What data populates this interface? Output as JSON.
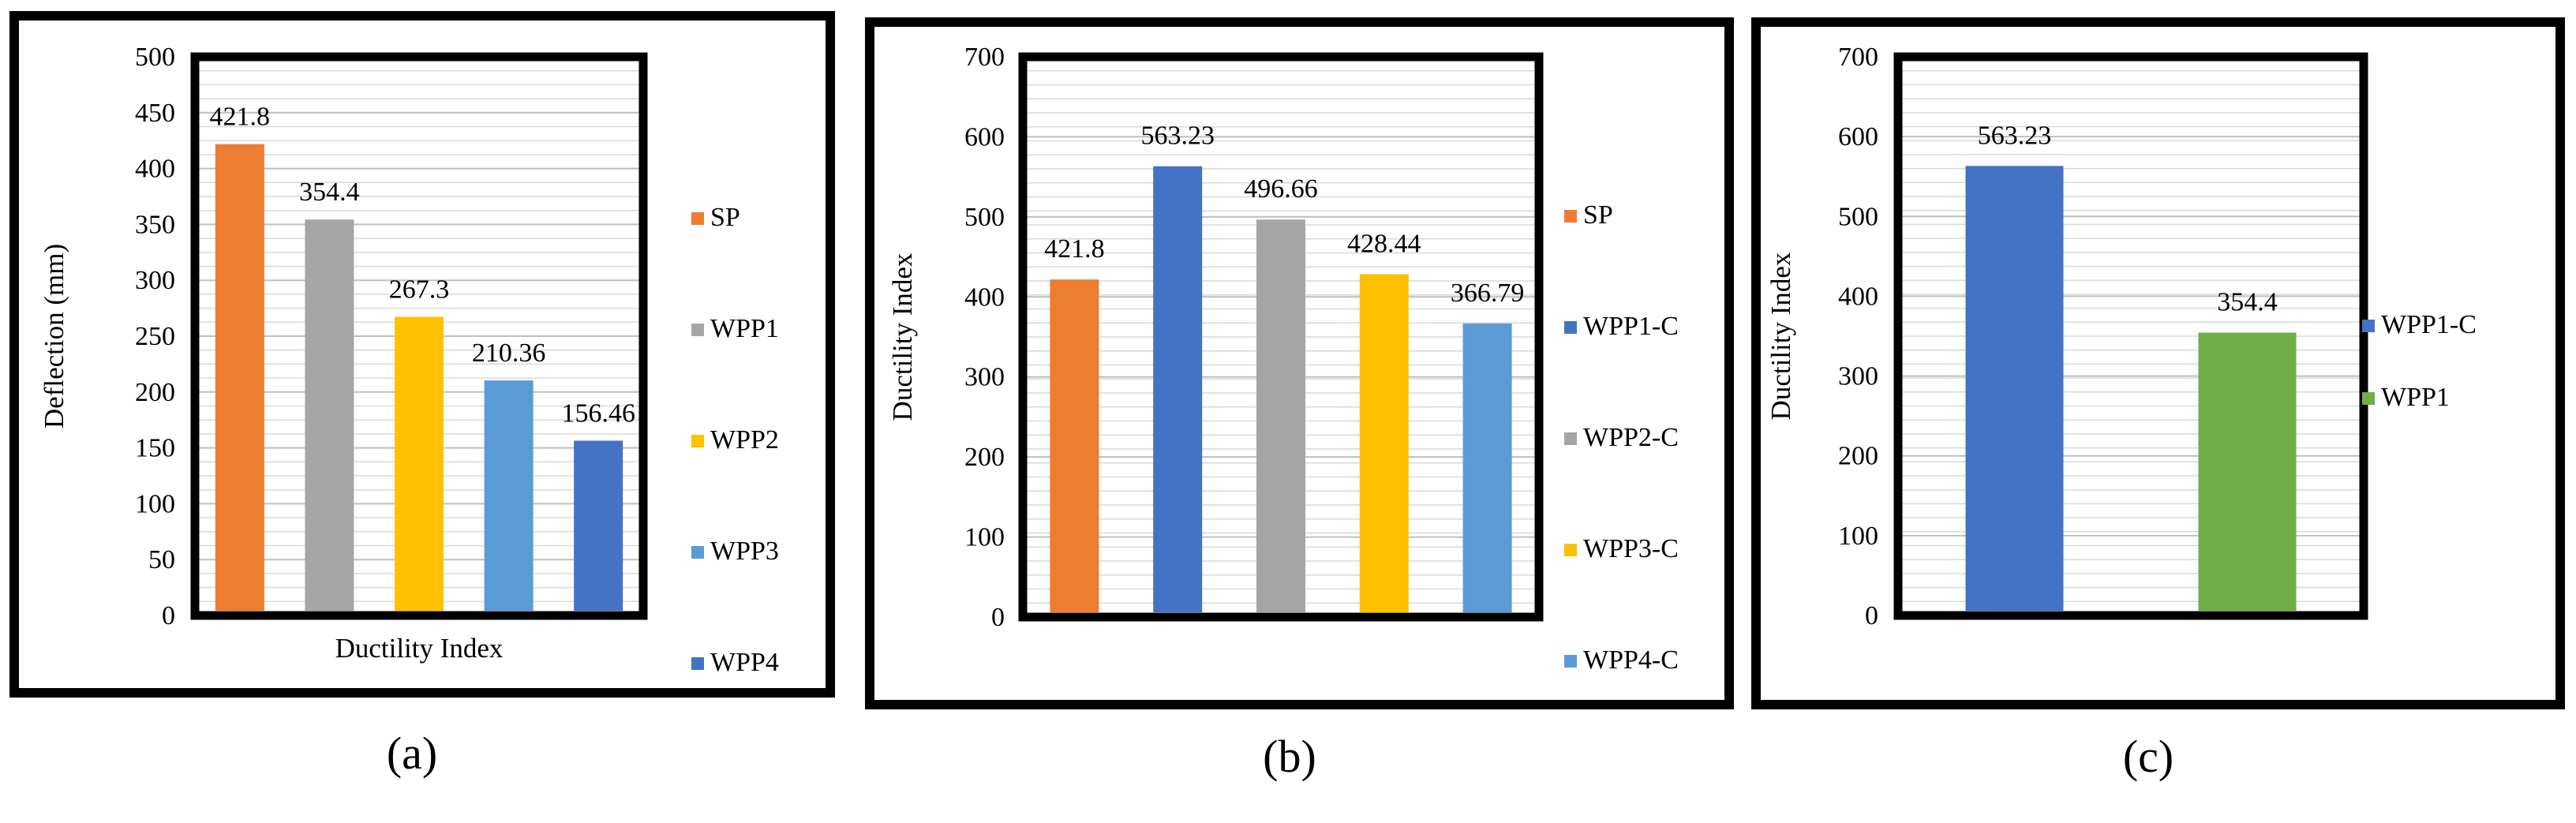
{
  "chart_data": [
    {
      "panel_label": "(a)",
      "type": "bar",
      "ylabel": "Deflection (mm)",
      "xlabel": "Ductility Index",
      "ylim": [
        0,
        500
      ],
      "yticks": [
        0,
        50,
        100,
        150,
        200,
        250,
        300,
        350,
        400,
        450,
        500
      ],
      "grid": true,
      "legend_position": "right",
      "series": [
        {
          "name": "SP",
          "value": 421.8,
          "label": "421.8",
          "color": "#ED7D31"
        },
        {
          "name": "WPP1",
          "value": 354.4,
          "label": "354.4",
          "color": "#A5A5A5"
        },
        {
          "name": "WPP2",
          "value": 267.3,
          "label": "267.3",
          "color": "#FFC000"
        },
        {
          "name": "WPP3",
          "value": 210.36,
          "label": "210.36",
          "color": "#5B9BD5"
        },
        {
          "name": "WPP4",
          "value": 156.46,
          "label": "156.46",
          "color": "#4472C4"
        }
      ]
    },
    {
      "panel_label": "(b)",
      "type": "bar",
      "ylabel": "Ductility Index",
      "xlabel": "",
      "ylim": [
        0,
        700
      ],
      "yticks": [
        0,
        100,
        200,
        300,
        400,
        500,
        600,
        700
      ],
      "grid": true,
      "legend_position": "right",
      "series": [
        {
          "name": "SP",
          "value": 421.8,
          "label": "421.8",
          "color": "#ED7D31"
        },
        {
          "name": "WPP1-C",
          "value": 563.23,
          "label": "563.23",
          "color": "#4472C4"
        },
        {
          "name": "WPP2-C",
          "value": 496.66,
          "label": "496.66",
          "color": "#A5A5A5"
        },
        {
          "name": "WPP3-C",
          "value": 428.44,
          "label": "428.44",
          "color": "#FFC000"
        },
        {
          "name": "WPP4-C",
          "value": 366.79,
          "label": "366.79",
          "color": "#5B9BD5"
        }
      ]
    },
    {
      "panel_label": "(c)",
      "type": "bar",
      "ylabel": "Ductility Index",
      "xlabel": "",
      "ylim": [
        0,
        700
      ],
      "yticks": [
        0,
        100,
        200,
        300,
        400,
        500,
        600,
        700
      ],
      "grid": true,
      "legend_position": "right",
      "series": [
        {
          "name": "WPP1-C",
          "value": 563.23,
          "label": "563.23",
          "color": "#4472C4"
        },
        {
          "name": "WPP1",
          "value": 354.4,
          "label": "354.4",
          "color": "#70AD47"
        }
      ]
    }
  ]
}
